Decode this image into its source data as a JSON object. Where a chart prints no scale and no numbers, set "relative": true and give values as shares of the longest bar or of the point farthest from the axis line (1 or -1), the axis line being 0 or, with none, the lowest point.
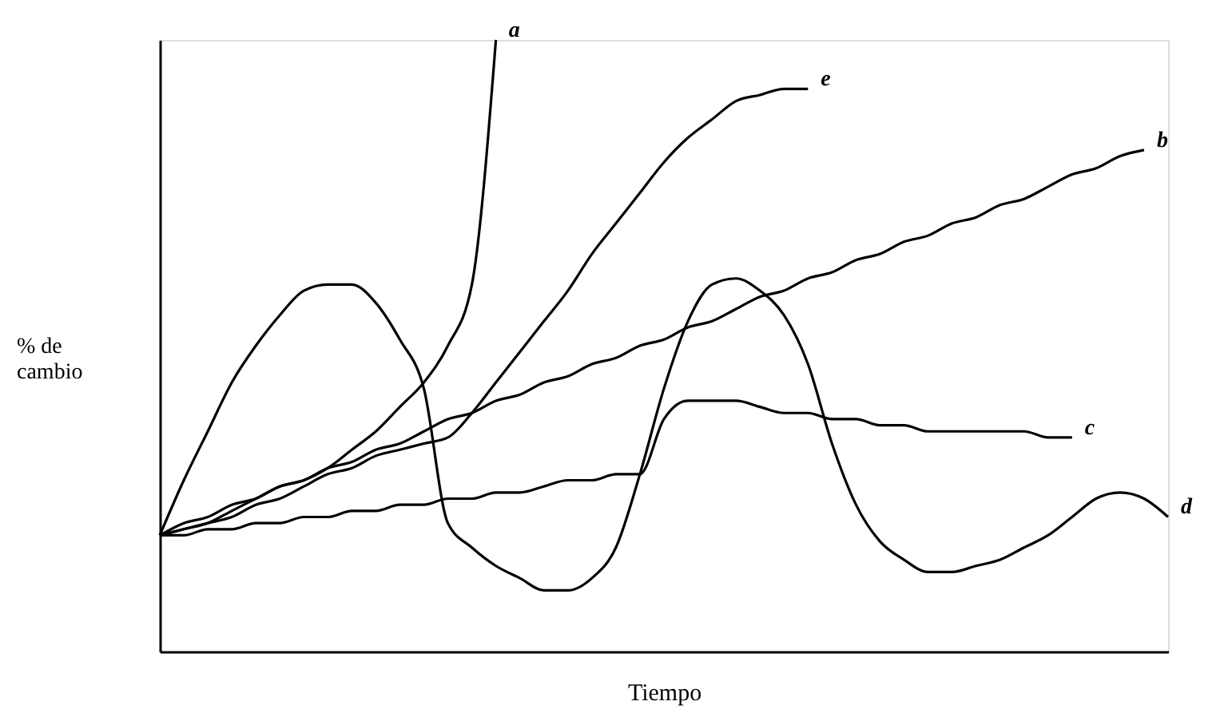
{
  "chart_data": {
    "type": "line",
    "relative": true,
    "tick_labels": false,
    "xlabel": "Tiempo",
    "ylabel": "% de\ncambio",
    "categories": [
      null,
      null,
      null,
      null,
      null,
      null,
      null,
      null,
      null,
      null,
      null,
      null,
      null,
      null,
      null,
      null,
      null,
      null,
      null,
      null,
      null,
      null,
      null,
      null,
      null,
      null,
      null,
      null,
      null,
      null,
      null,
      null,
      null,
      null,
      null,
      null,
      null,
      null,
      null,
      null,
      null,
      null,
      null
    ],
    "series": [
      {
        "name": "a",
        "color": "#000000",
        "values": [
          0.19,
          0.2,
          0.21,
          0.23,
          0.25,
          0.27,
          0.28,
          0.3,
          0.33,
          0.36,
          0.4,
          0.44,
          0.5,
          0.6,
          1.0,
          null,
          null,
          null,
          null,
          null,
          null,
          null,
          null,
          null,
          null,
          null,
          null,
          null,
          null,
          null,
          null,
          null,
          null,
          null,
          null,
          null,
          null,
          null,
          null,
          null,
          null,
          null,
          null
        ]
      },
      {
        "name": "e",
        "color": "#000000",
        "values": [
          0.19,
          0.2,
          0.21,
          0.22,
          0.24,
          0.25,
          0.27,
          0.29,
          0.3,
          0.32,
          0.33,
          0.34,
          0.35,
          0.39,
          0.44,
          0.49,
          0.54,
          0.59,
          0.65,
          0.7,
          0.75,
          0.8,
          0.84,
          0.87,
          0.9,
          0.91,
          0.92,
          0.92,
          null,
          null,
          null,
          null,
          null,
          null,
          null,
          null,
          null,
          null,
          null,
          null,
          null,
          null,
          null
        ]
      },
      {
        "name": "b",
        "color": "#000000",
        "values": [
          0.19,
          0.21,
          0.22,
          0.24,
          0.25,
          0.27,
          0.28,
          0.3,
          0.31,
          0.33,
          0.34,
          0.36,
          0.38,
          0.39,
          0.41,
          0.42,
          0.44,
          0.45,
          0.47,
          0.48,
          0.5,
          0.51,
          0.53,
          0.54,
          0.56,
          0.58,
          0.59,
          0.61,
          0.62,
          0.64,
          0.65,
          0.67,
          0.68,
          0.7,
          0.71,
          0.73,
          0.74,
          0.76,
          0.78,
          0.79,
          0.81,
          0.82,
          null
        ]
      },
      {
        "name": "c",
        "color": "#000000",
        "values": [
          0.19,
          0.19,
          0.2,
          0.2,
          0.21,
          0.21,
          0.22,
          0.22,
          0.23,
          0.23,
          0.24,
          0.24,
          0.25,
          0.25,
          0.26,
          0.26,
          0.27,
          0.28,
          0.28,
          0.29,
          0.29,
          0.38,
          0.41,
          0.41,
          0.41,
          0.4,
          0.39,
          0.39,
          0.38,
          0.38,
          0.37,
          0.37,
          0.36,
          0.36,
          0.36,
          0.36,
          0.36,
          0.35,
          0.35,
          null,
          null,
          null,
          null
        ]
      },
      {
        "name": "d",
        "color": "#000000",
        "values": [
          0.19,
          0.28,
          0.36,
          0.44,
          0.5,
          0.55,
          0.59,
          0.6,
          0.6,
          0.57,
          0.51,
          0.43,
          0.21,
          0.17,
          0.14,
          0.12,
          0.1,
          0.1,
          0.12,
          0.17,
          0.29,
          0.43,
          0.54,
          0.6,
          0.61,
          0.59,
          0.55,
          0.47,
          0.34,
          0.24,
          0.18,
          0.15,
          0.13,
          0.13,
          0.14,
          0.15,
          0.17,
          0.19,
          0.22,
          0.25,
          0.26,
          0.25,
          0.22
        ]
      }
    ]
  }
}
